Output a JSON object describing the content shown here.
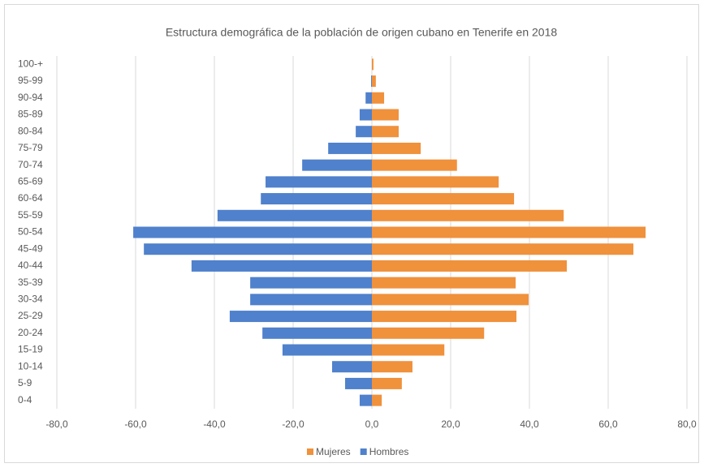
{
  "chart_data": {
    "type": "bar",
    "orientation": "horizontal",
    "stacked": true,
    "title": "Estructura demográfica de la población de origen cubano en Tenerife en 2018",
    "categories": [
      "0-4",
      "5-9",
      "10-14",
      "15-19",
      "20-24",
      "25-29",
      "30-34",
      "35-39",
      "40-44",
      "45-49",
      "50-54",
      "55-59",
      "60-64",
      "65-69",
      "70-74",
      "75-79",
      "80-84",
      "85-89",
      "90-94",
      "95-99",
      "100-+"
    ],
    "series": [
      {
        "name": "Mujeres",
        "color": "#f0913c",
        "values": [
          2.5,
          7.6,
          10.3,
          18.4,
          28.5,
          36.7,
          39.8,
          36.5,
          49.5,
          66.4,
          69.5,
          48.7,
          36.1,
          32.2,
          21.6,
          12.4,
          6.8,
          6.8,
          3.1,
          1.0,
          0.4
        ]
      },
      {
        "name": "Hombres",
        "color": "#4f81cc",
        "values": [
          -3.1,
          -6.8,
          -10.1,
          -22.7,
          -27.8,
          -36.1,
          -30.9,
          -30.9,
          -45.8,
          -57.9,
          -60.6,
          -39.2,
          -28.2,
          -27.0,
          -17.7,
          -11.1,
          -4.1,
          -3.1,
          -1.6,
          -0.2,
          0
        ]
      }
    ],
    "xlim": [
      -80,
      80
    ],
    "xticks": [
      {
        "value": -80,
        "label": "-80,0"
      },
      {
        "value": -60,
        "label": "-60,0"
      },
      {
        "value": -40,
        "label": "-40,0"
      },
      {
        "value": -20,
        "label": "-20,0"
      },
      {
        "value": 0,
        "label": "0,0"
      },
      {
        "value": 20,
        "label": "20,0"
      },
      {
        "value": 40,
        "label": "40,0"
      },
      {
        "value": 60,
        "label": "60,0"
      },
      {
        "value": 80,
        "label": "80,0"
      }
    ],
    "grid": true,
    "legend": "bottom"
  }
}
